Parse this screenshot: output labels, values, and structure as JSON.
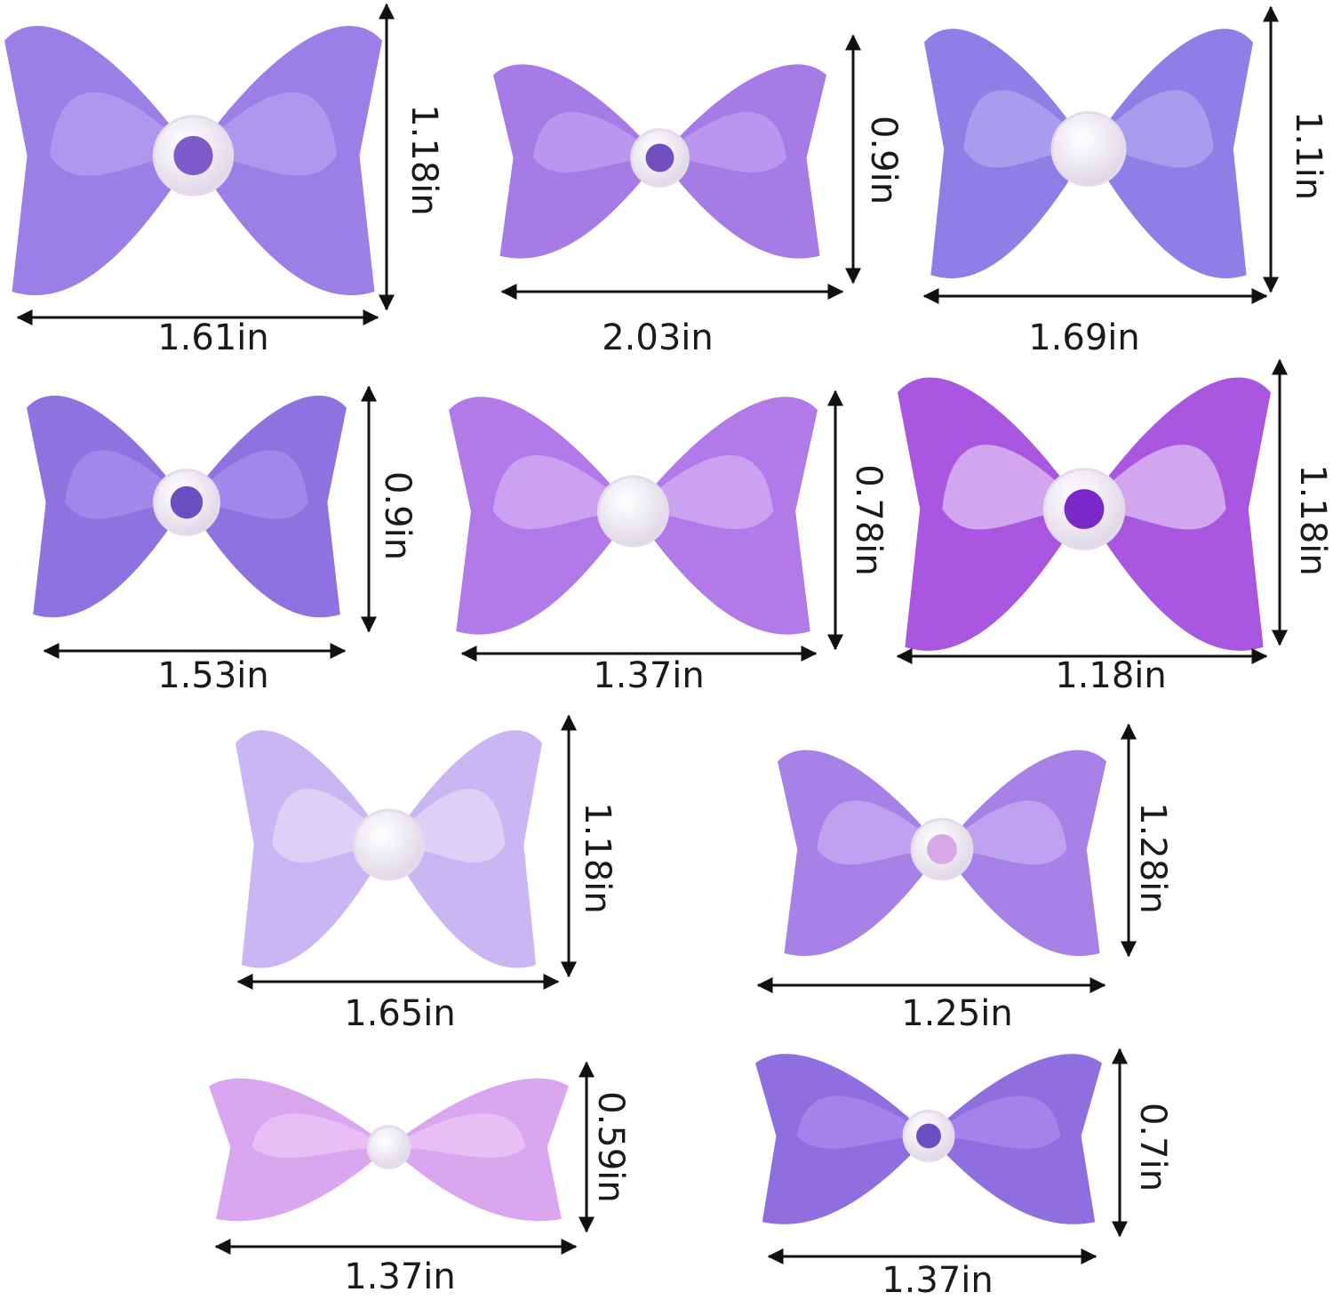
{
  "items": [
    {
      "width": "1.61in",
      "height": "1.18in"
    },
    {
      "width": "2.03in",
      "height": "0.9in"
    },
    {
      "width": "1.69in",
      "height": "1.1in"
    },
    {
      "width": "1.53in",
      "height": "0.9in"
    },
    {
      "width": "1.37in",
      "height": "0.78in"
    },
    {
      "width": "1.18in",
      "height": "1.18in"
    },
    {
      "width": "1.65in",
      "height": "1.18in"
    },
    {
      "width": "1.25in",
      "height": "1.28in"
    },
    {
      "width": "1.37in",
      "height": "0.59in"
    },
    {
      "width": "1.37in",
      "height": "0.7in"
    }
  ]
}
